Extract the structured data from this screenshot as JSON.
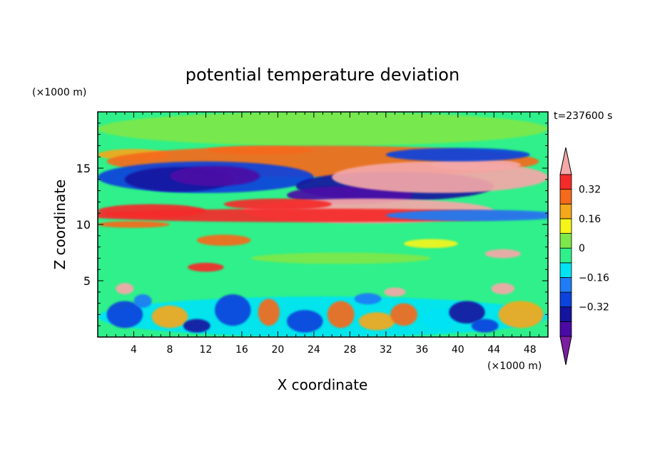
{
  "chart_data": {
    "type": "heatmap",
    "title": "potential temperature deviation",
    "xlabel": "X coordinate",
    "ylabel": "Z coordinate",
    "x_unit": "(×1000 m)",
    "y_unit": "(×1000 m)",
    "time_label": "t=237600 s",
    "xlim": [
      0,
      50
    ],
    "ylim": [
      0,
      20
    ],
    "x_ticks": [
      "4",
      "8",
      "12",
      "16",
      "20",
      "24",
      "28",
      "32",
      "36",
      "40",
      "44",
      "48"
    ],
    "y_ticks": [
      "5",
      "10",
      "15"
    ],
    "colorbar": {
      "levels": [
        -0.48,
        -0.4,
        -0.32,
        -0.24,
        -0.16,
        -0.08,
        0,
        0.08,
        0.16,
        0.24,
        0.32,
        0.4,
        0.48
      ],
      "tick_labels": [
        "0.32",
        "0.16",
        "0",
        "−0.16",
        "−0.32"
      ],
      "colors": [
        "#7a1fa2",
        "#4b0aa6",
        "#1414a0",
        "#0b43dc",
        "#1f7cf6",
        "#00e3f5",
        "#2ff08a",
        "#7ee84a",
        "#f5f51a",
        "#f5a81a",
        "#f56a1a",
        "#f52a2a",
        "#f5a8a8"
      ]
    },
    "fields": [
      {
        "x": 0,
        "z": 0,
        "v": 0
      }
    ]
  }
}
